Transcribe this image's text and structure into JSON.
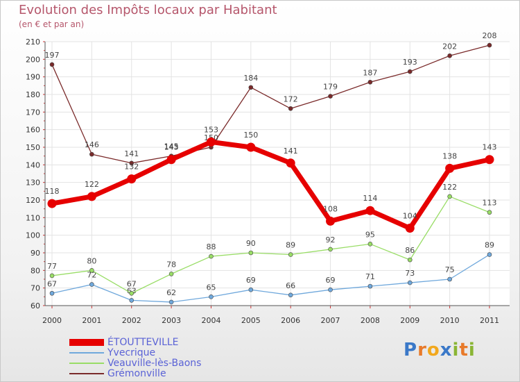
{
  "title": "Evolution des Impôts locaux par Habitant",
  "subtitle": "(en € et par an)",
  "logo_letters": [
    "P",
    "r",
    "o",
    "x",
    "i",
    "t",
    "i"
  ],
  "logo_colors": [
    "#3a78c8",
    "#e87a2a",
    "#f2a81d",
    "#3a78c8",
    "#8ab534",
    "#e87a2a",
    "#8ab534"
  ],
  "chart_data": {
    "type": "line",
    "title": "Evolution des Impôts locaux par Habitant",
    "subtitle": "(en € et par an)",
    "xlabel": "",
    "ylabel": "",
    "categories": [
      "2000",
      "2001",
      "2002",
      "2003",
      "2004",
      "2005",
      "2006",
      "2007",
      "2008",
      "2009",
      "2010",
      "2011"
    ],
    "ylim": [
      60,
      210
    ],
    "yticks": [
      60,
      70,
      80,
      90,
      100,
      110,
      120,
      130,
      140,
      150,
      160,
      170,
      180,
      190,
      200,
      210
    ],
    "grid": true,
    "legend_position": "bottom-left",
    "series": [
      {
        "name": "ÉTOUTTEVILLE",
        "color": "#e60000",
        "bold": true,
        "values": [
          118,
          122,
          132,
          143,
          153,
          150,
          141,
          108,
          114,
          104,
          138,
          143
        ]
      },
      {
        "name": "Yvecrique",
        "color": "#6fa8dc",
        "values": [
          67,
          72,
          63,
          62,
          65,
          69,
          66,
          69,
          71,
          73,
          75,
          89
        ]
      },
      {
        "name": "Veauville-lès-Baons",
        "color": "#99dd66",
        "values": [
          77,
          80,
          67,
          78,
          88,
          90,
          89,
          92,
          95,
          86,
          122,
          113
        ]
      },
      {
        "name": "Grémonville",
        "color": "#7a2a2a",
        "values": [
          197,
          146,
          141,
          145,
          150,
          184,
          172,
          179,
          187,
          193,
          202,
          208
        ]
      }
    ]
  }
}
